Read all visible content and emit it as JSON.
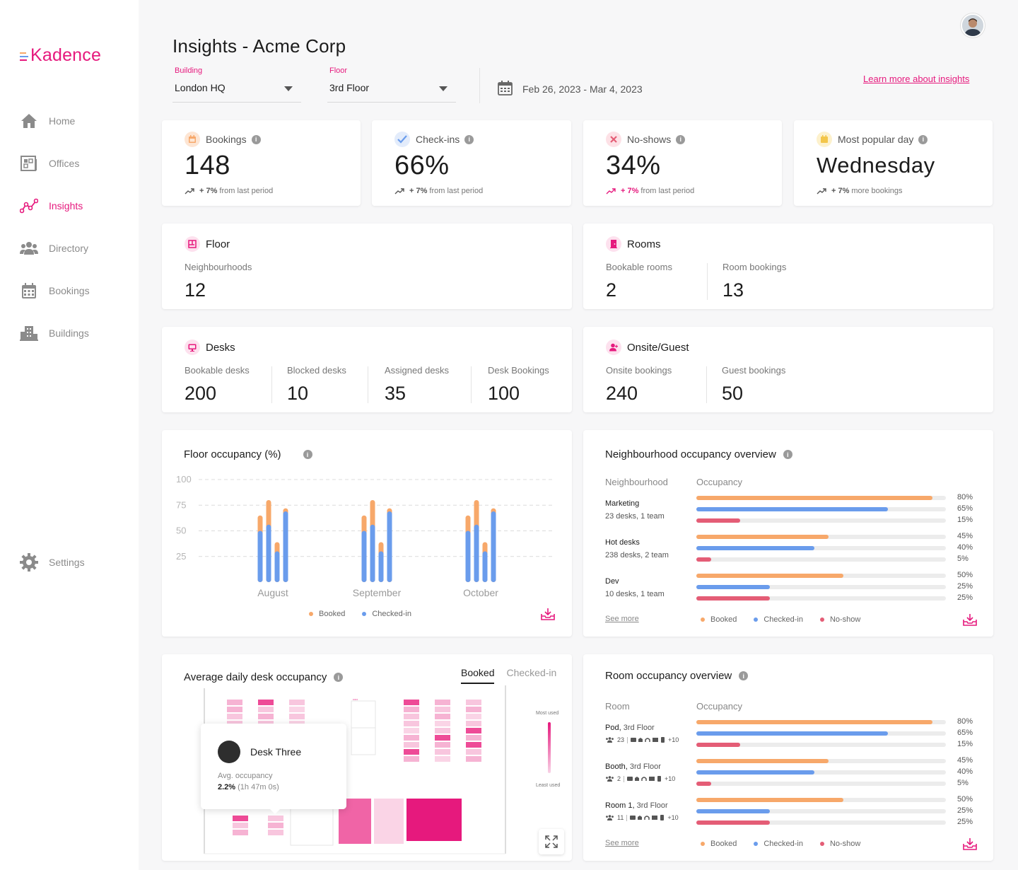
{
  "app": {
    "brand": "Kadence",
    "brand_color": "#e6197d"
  },
  "sidebar": {
    "items": [
      {
        "label": "Home",
        "icon": "home-icon"
      },
      {
        "label": "Offices",
        "icon": "offices-icon"
      },
      {
        "label": "Insights",
        "icon": "insights-icon",
        "active": true
      },
      {
        "label": "Directory",
        "icon": "directory-icon"
      },
      {
        "label": "Bookings",
        "icon": "calendar-icon"
      },
      {
        "label": "Buildings",
        "icon": "buildings-icon"
      }
    ],
    "settings_label": "Settings"
  },
  "header": {
    "title": "Insights - Acme Corp",
    "building_label": "Building",
    "building_value": "London HQ",
    "floor_label": "Floor",
    "floor_value": "3rd Floor",
    "date_range": "Feb 26, 2023 - Mar 4, 2023",
    "learn_more": "Learn more about insights"
  },
  "stats": [
    {
      "label": "Bookings",
      "value": "148",
      "delta": "+ 7%",
      "delta_text": "from last period"
    },
    {
      "label": "Check-ins",
      "value": "66%",
      "delta": "+ 7%",
      "delta_text": "from last period"
    },
    {
      "label": "No-shows",
      "value": "34%",
      "delta": "+ 7%",
      "delta_text": "from last period"
    },
    {
      "label": "Most popular day",
      "value": "Wednesday",
      "delta": "+ 7%",
      "delta_text": "more bookings"
    }
  ],
  "floor": {
    "title": "Floor",
    "neighbourhoods_label": "Neighbourhoods",
    "neighbourhoods_value": "12"
  },
  "rooms": {
    "title": "Rooms",
    "bookable_label": "Bookable rooms",
    "bookable_value": "2",
    "bookings_label": "Room bookings",
    "bookings_value": "13"
  },
  "desks": {
    "title": "Desks",
    "metrics": [
      {
        "label": "Bookable desks",
        "value": "200"
      },
      {
        "label": "Blocked desks",
        "value": "10"
      },
      {
        "label": "Assigned desks",
        "value": "35"
      },
      {
        "label": "Desk Bookings",
        "value": "100"
      }
    ]
  },
  "onsite": {
    "title": "Onsite/Guest",
    "onsite_label": "Onsite bookings",
    "onsite_value": "240",
    "guest_label": "Guest bookings",
    "guest_value": "50"
  },
  "legend": {
    "booked": "Booked",
    "checked_in": "Checked-in",
    "no_show": "No-show"
  },
  "colors": {
    "booked": "#f7a86a",
    "checked_in": "#6a9cec",
    "no_show": "#e45d76",
    "pink": "#e6197d"
  },
  "chart_data": {
    "type": "bar",
    "title": "Floor occupancy (%)",
    "categories": [
      "August",
      "September",
      "October"
    ],
    "ylim": [
      0,
      100
    ],
    "yticks": [
      25,
      50,
      75,
      100
    ],
    "series": [
      {
        "name": "Booked",
        "values": [
          [
            65,
            80,
            39,
            72
          ],
          [
            65,
            80,
            39,
            72
          ],
          [
            65,
            80,
            39,
            72
          ]
        ]
      },
      {
        "name": "Checked-in",
        "values": [
          [
            50,
            56,
            30,
            69
          ],
          [
            50,
            56,
            30,
            69
          ],
          [
            50,
            56,
            30,
            69
          ]
        ]
      }
    ]
  },
  "neighbourhood": {
    "title": "Neighbourhood occupancy overview",
    "col1": "Neighbourhood",
    "col2": "Occupancy",
    "see_more": "See more",
    "rows": [
      {
        "name": "Marketing",
        "sub": "23 desks, 1 team",
        "booked": 80,
        "checked": 65,
        "noshow": 15,
        "booked_label": "80%",
        "checked_label": "65%",
        "noshow_label": "15%"
      },
      {
        "name": "Hot desks",
        "sub": "238 desks, 2 team",
        "booked": 45,
        "checked": 40,
        "noshow": 5,
        "booked_label": "45%",
        "checked_label": "40%",
        "noshow_label": "5%"
      },
      {
        "name": "Dev",
        "sub": "10 desks, 1 team",
        "booked": 50,
        "checked": 25,
        "noshow": 25,
        "booked_label": "50%",
        "checked_label": "25%",
        "noshow_label": "25%"
      }
    ]
  },
  "desk_occupancy": {
    "title": "Average daily desk occupancy",
    "tab_booked": "Booked",
    "tab_checked": "Checked-in",
    "most_used": "Most used",
    "least_used": "Least used",
    "tooltip_name": "Desk Three",
    "tooltip_label": "Avg. occupancy",
    "tooltip_value": "2.2%",
    "tooltip_time": "(1h 47m 0s)"
  },
  "room_occupancy": {
    "title": "Room occupancy overview",
    "col1": "Room",
    "col2": "Occupancy",
    "see_more": "See more",
    "rows": [
      {
        "name": "Pod,",
        "floor": "3rd Floor",
        "capacity": "23",
        "extra": "+10",
        "booked": 80,
        "checked": 65,
        "noshow": 15,
        "booked_label": "80%",
        "checked_label": "65%",
        "noshow_label": "15%"
      },
      {
        "name": "Booth,",
        "floor": "3rd Floor",
        "capacity": "2",
        "extra": "+10",
        "booked": 45,
        "checked": 40,
        "noshow": 5,
        "booked_label": "45%",
        "checked_label": "40%",
        "noshow_label": "5%"
      },
      {
        "name": "Room 1,",
        "floor": "3rd Floor",
        "capacity": "11",
        "extra": "+10",
        "booked": 50,
        "checked": 25,
        "noshow": 25,
        "booked_label": "50%",
        "checked_label": "25%",
        "noshow_label": "25%"
      }
    ]
  }
}
